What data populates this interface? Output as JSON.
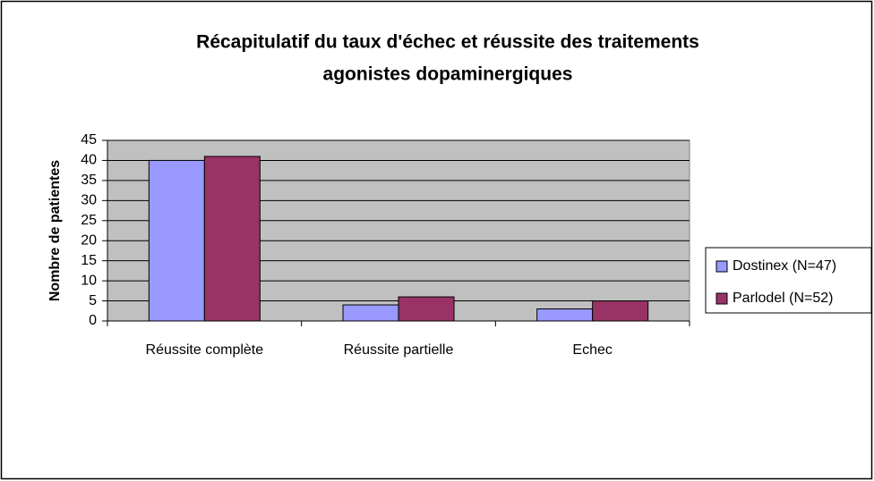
{
  "chart_data": {
    "type": "bar",
    "title": [
      "Récapitulatif du taux d'échec et réussite des traitements",
      "agonistes dopaminergiques"
    ],
    "y_label": "Nombre de patientes",
    "categories": [
      "Réussite complète",
      "Réussite partielle",
      "Echec"
    ],
    "series": [
      {
        "name": "Dostinex (N=47)",
        "color": "#9999ff",
        "values": [
          40,
          4,
          3
        ]
      },
      {
        "name": "Parlodel (N=52)",
        "color": "#993366",
        "values": [
          41,
          6,
          5
        ]
      }
    ],
    "ylim": [
      0,
      45
    ],
    "yticks": [
      0,
      5,
      10,
      15,
      20,
      25,
      30,
      35,
      40,
      45
    ],
    "grid": true,
    "legend": "right",
    "plot_background": "#c0c0c0"
  }
}
